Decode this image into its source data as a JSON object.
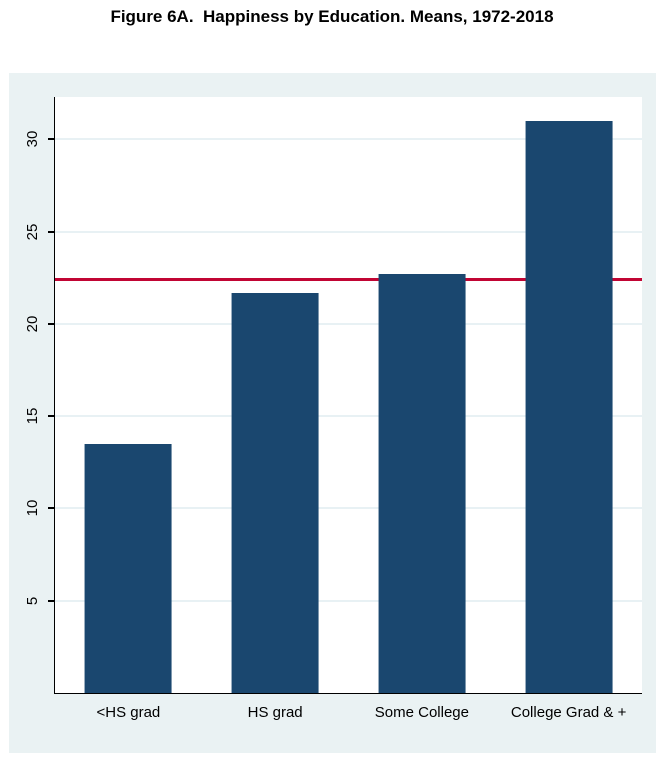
{
  "figure": {
    "title": "Figure 6A.  Happiness by Education. Means, 1972-2018"
  },
  "chart_data": {
    "type": "bar",
    "title": "Figure 6A.  Happiness by Education. Means, 1972-2018",
    "categories": [
      "<HS grad",
      "HS grad",
      "Some College",
      "College Grad & +"
    ],
    "values": [
      13.5,
      21.7,
      22.7,
      31.0
    ],
    "reference_line": {
      "value": 22.4,
      "orientation": "horizontal",
      "color": "#C10534"
    },
    "yticks": [
      5,
      10,
      15,
      20,
      25,
      30
    ],
    "ylim": [
      0,
      32.3
    ],
    "xlabel": "",
    "ylabel": "",
    "grid": "horizontal",
    "legend": "none",
    "colors": {
      "bar": "#1A476F",
      "plot_background": "#FFFFFF",
      "graph_background": "#EAF2F3",
      "gridline": "#E8F1F4",
      "axis": "#000000",
      "text": "#000000"
    }
  }
}
